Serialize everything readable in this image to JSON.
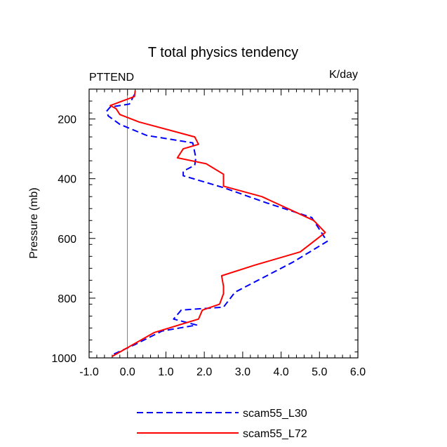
{
  "chart_data": {
    "type": "line",
    "title": "T total physics tendency",
    "left_label": "PTTEND",
    "right_label": "K/day",
    "xlabel": "",
    "ylabel": "Pressure (mb)",
    "xlim": [
      -1.0,
      6.0
    ],
    "ylim": [
      100,
      1000
    ],
    "y_inverted": true,
    "x_ticks": [
      "-1.0",
      "0.0",
      "1.0",
      "2.0",
      "3.0",
      "4.0",
      "5.0",
      "6.0"
    ],
    "x_tick_values": [
      -1,
      0,
      1,
      2,
      3,
      4,
      5,
      6
    ],
    "y_ticks": [
      "200",
      "400",
      "600",
      "800",
      "1000"
    ],
    "y_tick_values": [
      200,
      400,
      600,
      800,
      1000
    ],
    "zero_line": 0,
    "grid": false,
    "legend_position": "bottom",
    "series": [
      {
        "name": "scam55_L30",
        "color": "#0000ff",
        "dash": "dashed",
        "x": [
          0.18,
          0.05,
          -0.45,
          -0.55,
          -0.5,
          -0.2,
          0.5,
          1.7,
          1.78,
          1.75,
          1.45,
          1.45,
          2.5,
          3.6,
          4.8,
          5.2,
          4.3,
          2.8,
          2.5,
          1.4,
          1.2,
          1.8,
          0.9,
          0.2,
          -0.4
        ],
        "y": [
          118,
          150,
          160,
          175,
          190,
          218,
          255,
          280,
          330,
          355,
          375,
          390,
          430,
          480,
          530,
          610,
          680,
          780,
          830,
          840,
          870,
          890,
          910,
          955,
          990
        ]
      },
      {
        "name": "scam55_L72",
        "color": "#ff0000",
        "dash": "solid",
        "x": [
          0.2,
          0.18,
          -0.45,
          -0.3,
          -0.2,
          0.3,
          1.75,
          1.85,
          1.45,
          1.3,
          2.05,
          2.5,
          2.5,
          3.5,
          4.85,
          5.15,
          4.9,
          4.5,
          3.3,
          2.45,
          2.5,
          2.5,
          2.4,
          1.95,
          1.85,
          0.7,
          -0.4
        ],
        "y": [
          105,
          125,
          155,
          165,
          185,
          210,
          260,
          285,
          300,
          330,
          350,
          385,
          425,
          460,
          540,
          580,
          605,
          645,
          690,
          725,
          760,
          785,
          820,
          840,
          870,
          915,
          995
        ]
      }
    ]
  }
}
